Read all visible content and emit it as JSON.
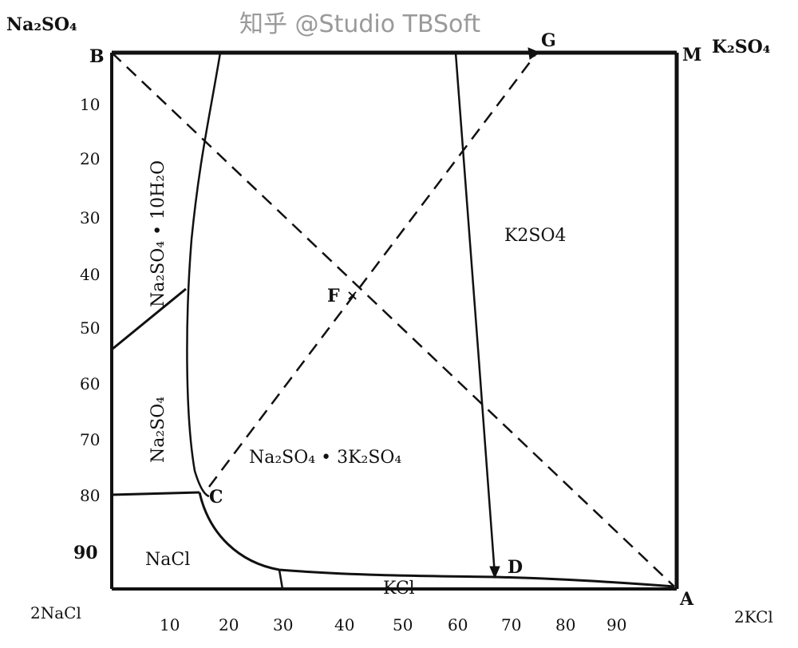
{
  "corners": {
    "top_left": "Na₂SO₄",
    "top_right": "K₂SO₄",
    "bottom_left": "2NaCl",
    "bottom_right": "2KCl"
  },
  "points": {
    "B": "B",
    "G": "G",
    "M": "M",
    "F": "F",
    "C": "C",
    "D": "D",
    "A": "A"
  },
  "x_ticks": [
    "10",
    "20",
    "30",
    "40",
    "50",
    "60",
    "70",
    "80",
    "90"
  ],
  "y_ticks": [
    "10",
    "20",
    "30",
    "40",
    "50",
    "60",
    "70",
    "80",
    "90"
  ],
  "regions": {
    "na2so4_decahydrate": "Na₂SO₄ • 10H₂O",
    "na2so4": "Na₂SO₄",
    "glaserite": "Na₂SO₄ • 3K₂SO₄",
    "k2so4": "K2SO4",
    "nacl": "NaCl",
    "kcl": "KCl"
  },
  "watermark": "知乎 @Studio TBSoft"
}
